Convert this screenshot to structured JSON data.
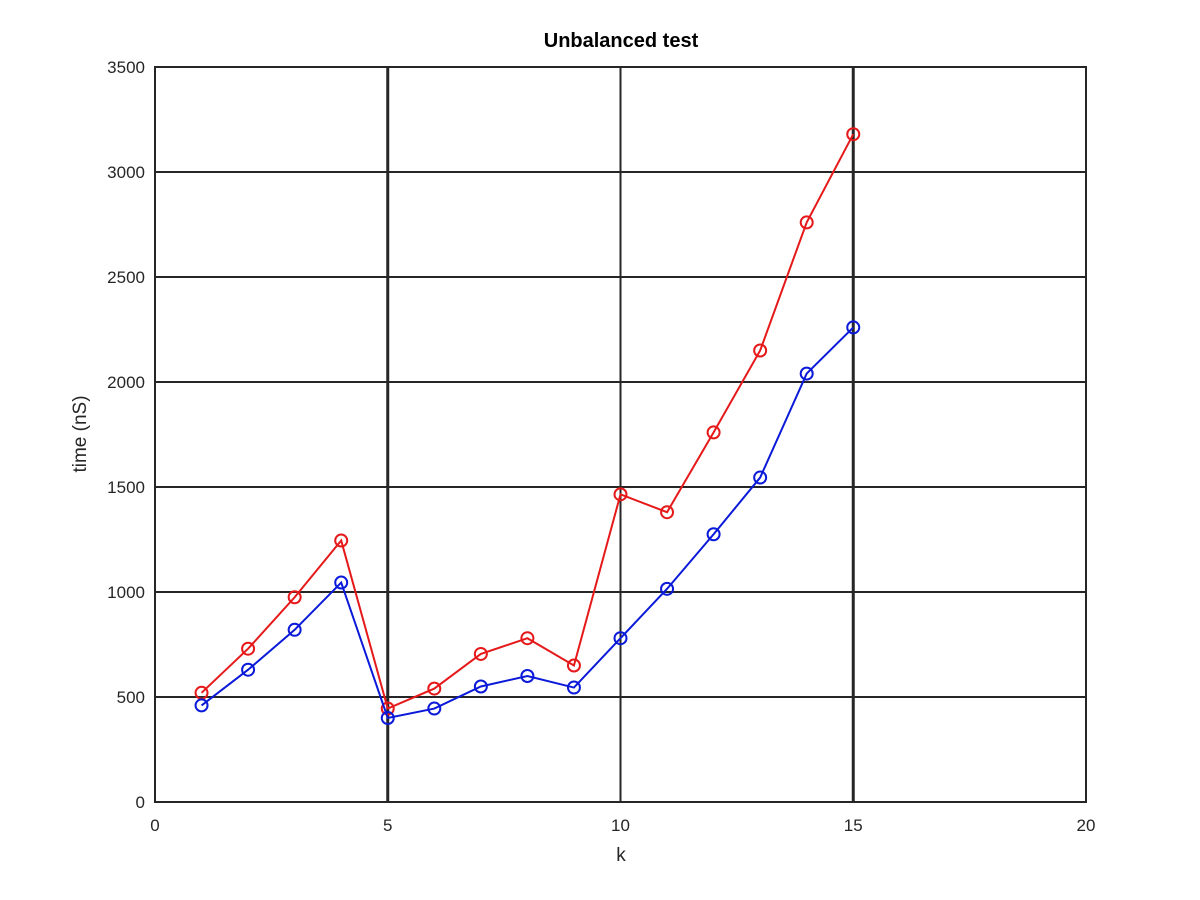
{
  "chart_data": {
    "type": "line",
    "title": "Unbalanced test",
    "xlabel": "k",
    "ylabel": "time (nS)",
    "xlim": [
      0,
      20
    ],
    "ylim": [
      0,
      3500
    ],
    "xticks": [
      0,
      5,
      10,
      15,
      20
    ],
    "yticks": [
      0,
      500,
      1000,
      1500,
      2000,
      2500,
      3000,
      3500
    ],
    "grid": true,
    "emphasized_x_gridlines": [
      5,
      15
    ],
    "marker": "circle",
    "x": [
      1,
      2,
      3,
      4,
      5,
      6,
      7,
      8,
      9,
      10,
      11,
      12,
      13,
      14,
      15
    ],
    "series": [
      {
        "color": "#e6191a",
        "values": [
          520,
          730,
          975,
          1245,
          445,
          540,
          705,
          780,
          650,
          1465,
          1380,
          1760,
          2150,
          2760,
          3180
        ]
      },
      {
        "color": "#0b1ad9",
        "values": [
          460,
          630,
          820,
          1045,
          400,
          445,
          550,
          600,
          545,
          780,
          1015,
          1275,
          1545,
          2040,
          2260
        ]
      }
    ]
  }
}
